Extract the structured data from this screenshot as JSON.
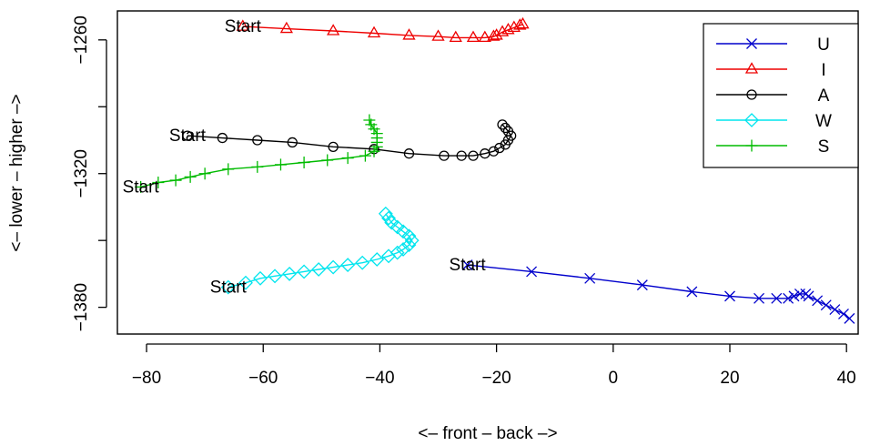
{
  "chart_data": {
    "type": "line",
    "xlabel": "<– front – back –>",
    "ylabel": "<– lower – higher –>",
    "xlim": [
      -85,
      42
    ],
    "ylim": [
      -1392,
      -1247
    ],
    "xticks": [
      -80,
      -60,
      -40,
      -20,
      0,
      20,
      40
    ],
    "yticks": [
      -1380,
      -1350,
      -1320,
      -1290,
      -1260
    ],
    "ytick_labels": [
      "−1380",
      "",
      "−1320",
      "",
      "−1260"
    ],
    "xtick_labels": [
      "−80",
      "−60",
      "−40",
      "−20",
      "0",
      "20",
      "40"
    ],
    "legend_position": "top-right",
    "start_label": "Start",
    "series": [
      {
        "name": "U",
        "color": "#0000CC",
        "marker": "x",
        "points": [
          [
            -25,
            -1361
          ],
          [
            -14,
            -1364
          ],
          [
            -4,
            -1367
          ],
          [
            5,
            -1370
          ],
          [
            13.5,
            -1373
          ],
          [
            20,
            -1375
          ],
          [
            25,
            -1376
          ],
          [
            28,
            -1376
          ],
          [
            30,
            -1376
          ],
          [
            31,
            -1375
          ],
          [
            32,
            -1374
          ],
          [
            33,
            -1374
          ],
          [
            33.5,
            -1375
          ],
          [
            35,
            -1377
          ],
          [
            36.5,
            -1379
          ],
          [
            38,
            -1381
          ],
          [
            39.5,
            -1383
          ],
          [
            40.5,
            -1385
          ]
        ]
      },
      {
        "name": "I",
        "color": "#EE0000",
        "marker": "triangle",
        "points": [
          [
            -63.5,
            -1254
          ],
          [
            -56,
            -1255
          ],
          [
            -48,
            -1256
          ],
          [
            -41,
            -1257
          ],
          [
            -35,
            -1258
          ],
          [
            -30,
            -1258.5
          ],
          [
            -27,
            -1259
          ],
          [
            -24,
            -1259
          ],
          [
            -22,
            -1259
          ],
          [
            -20.5,
            -1258.5
          ],
          [
            -20,
            -1258
          ],
          [
            -19,
            -1256.5
          ],
          [
            -18,
            -1255.5
          ],
          [
            -17,
            -1254.5
          ],
          [
            -16,
            -1253.5
          ],
          [
            -15.5,
            -1253
          ]
        ]
      },
      {
        "name": "A",
        "color": "#000000",
        "marker": "circle",
        "points": [
          [
            -73,
            -1303
          ],
          [
            -67,
            -1304
          ],
          [
            -61,
            -1305
          ],
          [
            -55,
            -1306
          ],
          [
            -48,
            -1308
          ],
          [
            -41,
            -1309
          ],
          [
            -35,
            -1311
          ],
          [
            -29,
            -1312
          ],
          [
            -26,
            -1312
          ],
          [
            -24,
            -1312
          ],
          [
            -22,
            -1311
          ],
          [
            -20.5,
            -1310
          ],
          [
            -19.5,
            -1308.5
          ],
          [
            -18.5,
            -1307
          ],
          [
            -18,
            -1305
          ],
          [
            -17.5,
            -1303
          ],
          [
            -18,
            -1301
          ],
          [
            -18.5,
            -1299.5
          ],
          [
            -19,
            -1298
          ]
        ]
      },
      {
        "name": "W",
        "color": "#00E5EE",
        "marker": "diamond",
        "points": [
          [
            -66,
            -1371
          ],
          [
            -63,
            -1369
          ],
          [
            -60.5,
            -1367
          ],
          [
            -58,
            -1366
          ],
          [
            -55.5,
            -1365
          ],
          [
            -53,
            -1364
          ],
          [
            -50.5,
            -1363
          ],
          [
            -48,
            -1362
          ],
          [
            -45.5,
            -1361
          ],
          [
            -43,
            -1360
          ],
          [
            -40.5,
            -1358.5
          ],
          [
            -38.5,
            -1357
          ],
          [
            -37,
            -1355.5
          ],
          [
            -36,
            -1354
          ],
          [
            -35,
            -1352
          ],
          [
            -34.5,
            -1350
          ],
          [
            -35,
            -1348
          ],
          [
            -36,
            -1346
          ],
          [
            -37,
            -1344
          ],
          [
            -38,
            -1342
          ],
          [
            -38.5,
            -1340
          ],
          [
            -39,
            -1338
          ]
        ]
      },
      {
        "name": "S",
        "color": "#00BB00",
        "marker": "plus",
        "points": [
          [
            -81,
            -1326
          ],
          [
            -78,
            -1324
          ],
          [
            -75,
            -1323
          ],
          [
            -72.5,
            -1321.5
          ],
          [
            -70,
            -1320
          ],
          [
            -66,
            -1318
          ],
          [
            -61,
            -1317
          ],
          [
            -57,
            -1316
          ],
          [
            -53,
            -1315
          ],
          [
            -49,
            -1314
          ],
          [
            -45.5,
            -1313
          ],
          [
            -42.5,
            -1312
          ],
          [
            -41,
            -1310
          ],
          [
            -40.5,
            -1308
          ],
          [
            -40.5,
            -1306
          ],
          [
            -40.5,
            -1304
          ],
          [
            -40.5,
            -1302
          ],
          [
            -41,
            -1300
          ],
          [
            -41.5,
            -1298
          ],
          [
            -41.8,
            -1296
          ]
        ]
      }
    ],
    "start_points": [
      [
        -25,
        -1361
      ],
      [
        -63.5,
        -1254
      ],
      [
        -73,
        -1303
      ],
      [
        -66,
        -1371
      ],
      [
        -81,
        -1326
      ]
    ]
  }
}
